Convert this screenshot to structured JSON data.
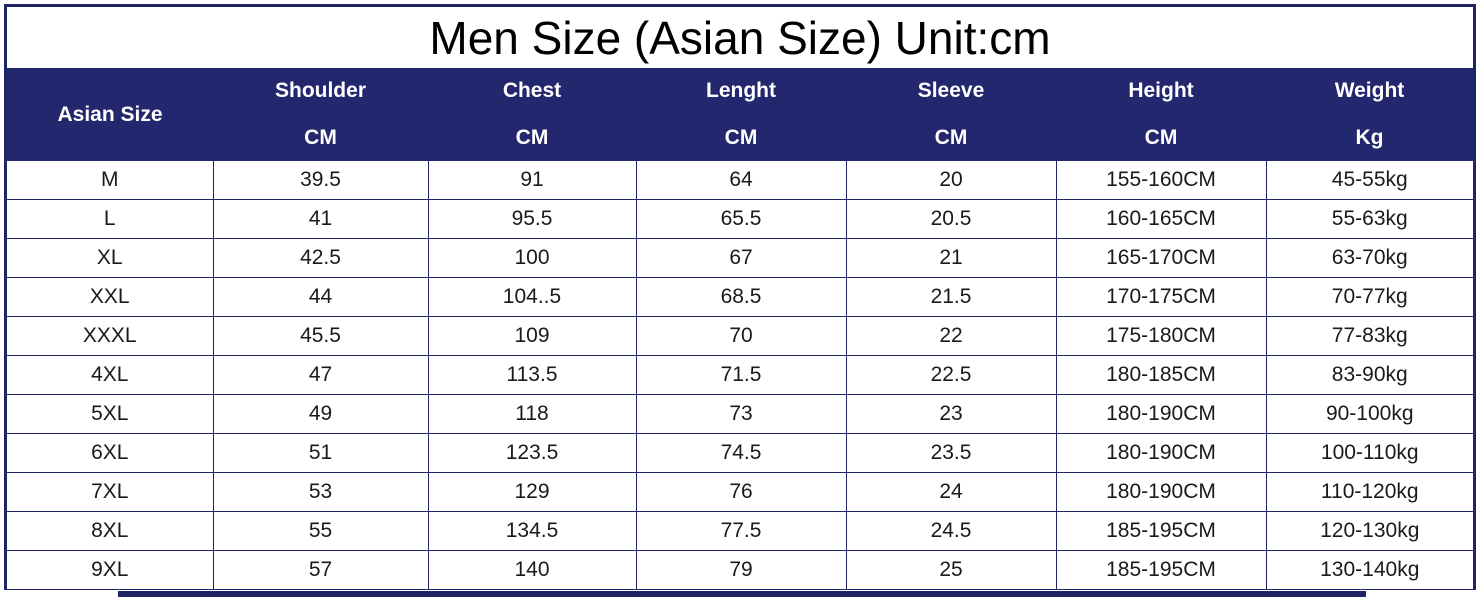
{
  "title": "Men Size (Asian Size) Unit:cm",
  "header": {
    "size_label": "Asian Size",
    "columns": [
      {
        "name": "Shoulder",
        "unit": "CM"
      },
      {
        "name": "Chest",
        "unit": "CM"
      },
      {
        "name": "Lenght",
        "unit": "CM"
      },
      {
        "name": "Sleeve",
        "unit": "CM"
      },
      {
        "name": "Height",
        "unit": "CM"
      },
      {
        "name": "Weight",
        "unit": "Kg"
      }
    ]
  },
  "rows": [
    [
      "M",
      "39.5",
      "91",
      "64",
      "20",
      "155-160CM",
      "45-55kg"
    ],
    [
      "L",
      "41",
      "95.5",
      "65.5",
      "20.5",
      "160-165CM",
      "55-63kg"
    ],
    [
      "XL",
      "42.5",
      "100",
      "67",
      "21",
      "165-170CM",
      "63-70kg"
    ],
    [
      "XXL",
      "44",
      "104..5",
      "68.5",
      "21.5",
      "170-175CM",
      "70-77kg"
    ],
    [
      "XXXL",
      "45.5",
      "109",
      "70",
      "22",
      "175-180CM",
      "77-83kg"
    ],
    [
      "4XL",
      "47",
      "113.5",
      "71.5",
      "22.5",
      "180-185CM",
      "83-90kg"
    ],
    [
      "5XL",
      "49",
      "118",
      "73",
      "23",
      "180-190CM",
      "90-100kg"
    ],
    [
      "6XL",
      "51",
      "123.5",
      "74.5",
      "23.5",
      "180-190CM",
      "100-110kg"
    ],
    [
      "7XL",
      "53",
      "129",
      "76",
      "24",
      "180-190CM",
      "110-120kg"
    ],
    [
      "8XL",
      "55",
      "134.5",
      "77.5",
      "24.5",
      "185-195CM",
      "120-130kg"
    ],
    [
      "9XL",
      "57",
      "140",
      "79",
      "25",
      "185-195CM",
      "130-140kg"
    ]
  ],
  "colors": {
    "header_bg": "#23276d",
    "border": "#1f2464",
    "header_text": "#ffffff"
  }
}
